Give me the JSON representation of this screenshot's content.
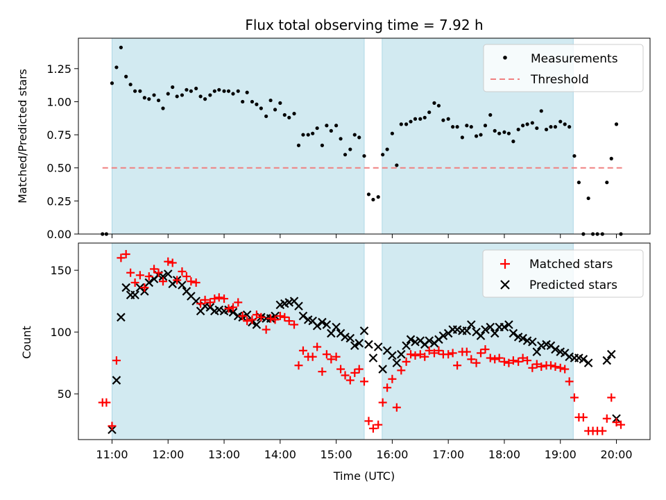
{
  "chart_data": [
    {
      "type": "scatter",
      "title": "Flux total observing time = 7.92 h",
      "xlabel": "",
      "ylabel": "Matched/Predicted stars",
      "x_unit": "hours (UTC)",
      "xlim": [
        10.4,
        20.6
      ],
      "ylim": [
        0,
        1.48
      ],
      "yticks": [
        0.0,
        0.25,
        0.5,
        0.75,
        1.0,
        1.25
      ],
      "ytick_labels": [
        "0.00",
        "0.25",
        "0.50",
        "0.75",
        "1.00",
        "1.25"
      ],
      "shaded_intervals": [
        [
          11.0,
          15.5
        ],
        [
          15.82,
          19.23
        ]
      ],
      "shade_color": "#add8e6",
      "threshold": {
        "name": "Threshold",
        "y": 0.5,
        "x_range": [
          10.83,
          20.1
        ],
        "color": "#f08080"
      },
      "legend_position": "top-right",
      "series": [
        {
          "name": "Measurements",
          "color": "#000000",
          "marker": "dot",
          "x": [
            10.83,
            10.9,
            11.0,
            11.08,
            11.16,
            11.25,
            11.33,
            11.41,
            11.5,
            11.58,
            11.66,
            11.75,
            11.83,
            11.91,
            12.0,
            12.08,
            12.16,
            12.25,
            12.33,
            12.41,
            12.5,
            12.58,
            12.66,
            12.75,
            12.83,
            12.91,
            13.0,
            13.08,
            13.16,
            13.25,
            13.33,
            13.41,
            13.5,
            13.58,
            13.66,
            13.75,
            13.83,
            13.91,
            14.0,
            14.08,
            14.16,
            14.25,
            14.33,
            14.41,
            14.5,
            14.58,
            14.66,
            14.75,
            14.83,
            14.91,
            15.0,
            15.08,
            15.16,
            15.25,
            15.33,
            15.41,
            15.5,
            15.58,
            15.66,
            15.75,
            15.83,
            15.91,
            16.0,
            16.08,
            16.16,
            16.25,
            16.33,
            16.41,
            16.5,
            16.58,
            16.66,
            16.75,
            16.83,
            16.91,
            17.0,
            17.08,
            17.16,
            17.25,
            17.33,
            17.41,
            17.5,
            17.58,
            17.66,
            17.75,
            17.83,
            17.91,
            18.0,
            18.08,
            18.16,
            18.25,
            18.33,
            18.41,
            18.5,
            18.58,
            18.66,
            18.75,
            18.83,
            18.91,
            19.0,
            19.08,
            19.16,
            19.25,
            19.33,
            19.41,
            19.5,
            19.58,
            19.66,
            19.75,
            19.83,
            19.91,
            20.0,
            20.08
          ],
          "y": [
            0.0,
            0.0,
            1.14,
            1.26,
            1.41,
            1.19,
            1.13,
            1.08,
            1.08,
            1.03,
            1.02,
            1.05,
            1.01,
            0.95,
            1.06,
            1.11,
            1.04,
            1.05,
            1.09,
            1.08,
            1.1,
            1.04,
            1.02,
            1.05,
            1.08,
            1.09,
            1.08,
            1.08,
            1.06,
            1.08,
            1.0,
            1.07,
            1.0,
            0.98,
            0.95,
            0.89,
            1.01,
            0.94,
            0.99,
            0.9,
            0.88,
            0.91,
            0.67,
            0.75,
            0.75,
            0.76,
            0.8,
            0.67,
            0.82,
            0.78,
            0.82,
            0.72,
            0.6,
            0.64,
            0.75,
            0.73,
            0.59,
            0.3,
            0.26,
            0.28,
            0.6,
            0.64,
            0.76,
            0.52,
            0.83,
            0.83,
            0.85,
            0.87,
            0.87,
            0.88,
            0.92,
            0.99,
            0.97,
            0.86,
            0.87,
            0.81,
            0.81,
            0.73,
            0.82,
            0.81,
            0.74,
            0.75,
            0.82,
            0.9,
            0.78,
            0.76,
            0.77,
            0.76,
            0.7,
            0.79,
            0.82,
            0.83,
            0.84,
            0.8,
            0.93,
            0.79,
            0.81,
            0.81,
            0.85,
            0.83,
            0.81,
            0.59,
            0.39,
            0.0,
            0.27,
            0.0,
            0.0,
            0.0,
            0.39,
            0.57,
            0.83,
            0.0
          ]
        }
      ]
    },
    {
      "type": "scatter",
      "title": "",
      "xlabel": "Time (UTC)",
      "ylabel": "Count",
      "x_unit": "hours (UTC)",
      "xlim": [
        10.4,
        20.6
      ],
      "ylim": [
        13,
        172
      ],
      "yticks": [
        50,
        100,
        150
      ],
      "ytick_labels": [
        "50",
        "100",
        "150"
      ],
      "xticks": [
        11,
        12,
        13,
        14,
        15,
        16,
        17,
        18,
        19,
        20
      ],
      "xtick_labels": [
        "11:00",
        "12:00",
        "13:00",
        "14:00",
        "15:00",
        "16:00",
        "17:00",
        "18:00",
        "19:00",
        "20:00"
      ],
      "shaded_intervals": [
        [
          11.0,
          15.5
        ],
        [
          15.82,
          19.23
        ]
      ],
      "shade_color": "#add8e6",
      "legend_position": "top-right",
      "series": [
        {
          "name": "Matched stars",
          "color": "#ff0000",
          "marker": "plus",
          "x": [
            10.83,
            10.9,
            11.0,
            11.08,
            11.16,
            11.25,
            11.33,
            11.41,
            11.5,
            11.58,
            11.66,
            11.75,
            11.83,
            11.91,
            12.0,
            12.08,
            12.16,
            12.25,
            12.33,
            12.41,
            12.5,
            12.58,
            12.66,
            12.75,
            12.83,
            12.91,
            13.0,
            13.08,
            13.16,
            13.25,
            13.33,
            13.41,
            13.5,
            13.58,
            13.66,
            13.75,
            13.83,
            13.91,
            14.0,
            14.08,
            14.16,
            14.25,
            14.33,
            14.41,
            14.5,
            14.58,
            14.66,
            14.75,
            14.83,
            14.91,
            15.0,
            15.08,
            15.16,
            15.25,
            15.33,
            15.41,
            15.5,
            15.58,
            15.66,
            15.75,
            15.83,
            15.91,
            16.0,
            16.08,
            16.16,
            16.25,
            16.33,
            16.41,
            16.5,
            16.58,
            16.66,
            16.75,
            16.83,
            16.91,
            17.0,
            17.08,
            17.16,
            17.25,
            17.33,
            17.41,
            17.5,
            17.58,
            17.66,
            17.75,
            17.83,
            17.91,
            18.0,
            18.08,
            18.16,
            18.25,
            18.33,
            18.41,
            18.5,
            18.58,
            18.66,
            18.75,
            18.83,
            18.91,
            19.0,
            19.08,
            19.16,
            19.25,
            19.33,
            19.41,
            19.5,
            19.58,
            19.66,
            19.75,
            19.83,
            19.91,
            20.0,
            20.08
          ],
          "y": [
            43,
            43,
            24,
            77,
            160,
            163,
            148,
            140,
            146,
            136,
            145,
            151,
            148,
            141,
            157,
            156,
            142,
            149,
            145,
            141,
            140,
            123,
            126,
            124,
            127,
            128,
            127,
            119,
            120,
            124,
            113,
            109,
            110,
            114,
            112,
            102,
            111,
            110,
            113,
            112,
            109,
            106,
            73,
            85,
            80,
            80,
            88,
            68,
            82,
            78,
            80,
            70,
            65,
            61,
            67,
            70,
            60,
            28,
            22,
            25,
            43,
            55,
            62,
            39,
            69,
            76,
            82,
            81,
            82,
            80,
            85,
            83,
            85,
            82,
            82,
            83,
            73,
            84,
            84,
            78,
            75,
            83,
            86,
            79,
            78,
            79,
            76,
            75,
            77,
            76,
            79,
            77,
            71,
            74,
            72,
            73,
            73,
            72,
            71,
            70,
            60,
            47,
            31,
            31,
            20,
            20,
            20,
            20,
            30,
            47,
            27,
            25
          ]
        },
        {
          "name": "Predicted stars",
          "color": "#000000",
          "marker": "x",
          "x": [
            11.0,
            11.08,
            11.16,
            11.25,
            11.33,
            11.41,
            11.5,
            11.58,
            11.66,
            11.75,
            11.83,
            11.91,
            12.0,
            12.08,
            12.16,
            12.25,
            12.33,
            12.41,
            12.5,
            12.58,
            12.66,
            12.75,
            12.83,
            12.91,
            13.0,
            13.08,
            13.16,
            13.25,
            13.33,
            13.41,
            13.5,
            13.58,
            13.66,
            13.75,
            13.83,
            13.91,
            14.0,
            14.08,
            14.16,
            14.25,
            14.33,
            14.41,
            14.5,
            14.58,
            14.66,
            14.75,
            14.83,
            14.91,
            15.0,
            15.08,
            15.16,
            15.25,
            15.33,
            15.41,
            15.5,
            15.58,
            15.66,
            15.75,
            15.83,
            15.91,
            16.0,
            16.08,
            16.16,
            16.25,
            16.33,
            16.41,
            16.5,
            16.58,
            16.66,
            16.75,
            16.83,
            16.91,
            17.0,
            17.08,
            17.16,
            17.25,
            17.33,
            17.41,
            17.5,
            17.58,
            17.66,
            17.75,
            17.83,
            17.91,
            18.0,
            18.08,
            18.16,
            18.25,
            18.33,
            18.41,
            18.5,
            18.58,
            18.66,
            18.75,
            18.83,
            18.91,
            19.0,
            19.08,
            19.16,
            19.25,
            19.33,
            19.41,
            19.5,
            19.83,
            19.91,
            20.0
          ],
          "y": [
            21,
            61,
            112,
            136,
            130,
            130,
            136,
            133,
            140,
            143,
            146,
            145,
            147,
            139,
            142,
            138,
            133,
            129,
            125,
            117,
            121,
            120,
            117,
            118,
            117,
            118,
            116,
            113,
            112,
            114,
            108,
            106,
            112,
            111,
            111,
            113,
            122,
            123,
            124,
            125,
            121,
            113,
            110,
            109,
            105,
            108,
            106,
            99,
            104,
            99,
            96,
            95,
            89,
            91,
            101,
            90,
            79,
            88,
            70,
            85,
            81,
            75,
            82,
            89,
            94,
            92,
            93,
            90,
            93,
            91,
            94,
            97,
            99,
            102,
            102,
            101,
            101,
            106,
            100,
            97,
            102,
            104,
            99,
            104,
            104,
            106,
            99,
            96,
            95,
            93,
            92,
            84,
            89,
            90,
            89,
            86,
            84,
            83,
            80,
            79,
            79,
            78,
            75,
            77,
            82,
            30
          ]
        }
      ]
    }
  ]
}
